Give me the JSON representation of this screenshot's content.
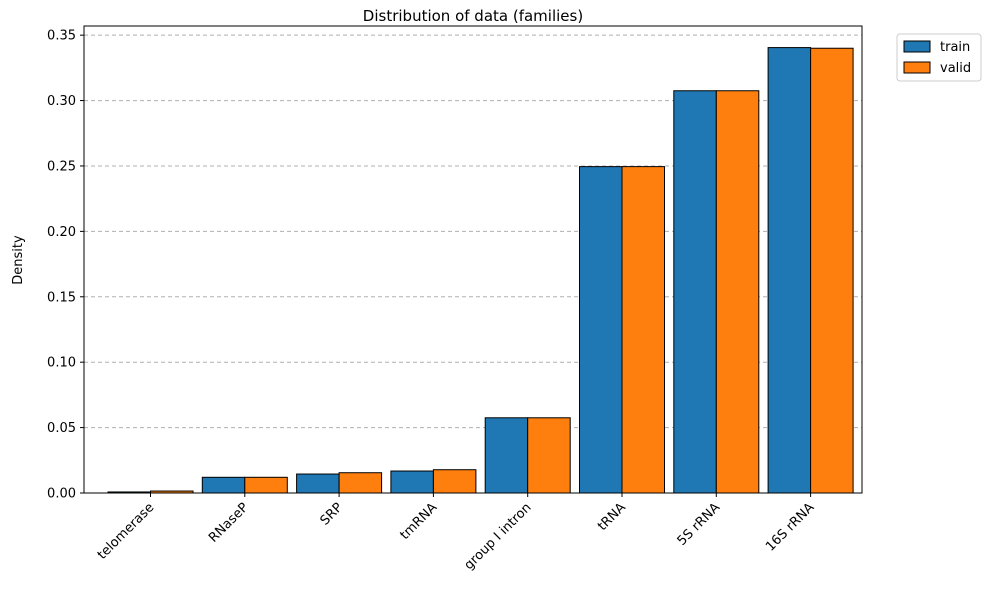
{
  "chart_data": {
    "type": "bar",
    "title": "Distribution of data (families)",
    "xlabel": "",
    "ylabel": "Density",
    "ylim": [
      0,
      0.357
    ],
    "yticks": [
      "0.00",
      "0.05",
      "0.10",
      "0.15",
      "0.20",
      "0.25",
      "0.30",
      "0.35"
    ],
    "grid": "horizontal dashed",
    "legend_position": "outside top-right",
    "categories": [
      "telomerase",
      "RNaseP",
      "SRP",
      "tmRNA",
      "group I intron",
      "tRNA",
      "5S rRNA",
      "16S rRNA"
    ],
    "series": [
      {
        "name": "train",
        "color": "#1f77b4",
        "values": [
          0.0008,
          0.012,
          0.0145,
          0.0168,
          0.0575,
          0.2495,
          0.3075,
          0.3405
        ]
      },
      {
        "name": "valid",
        "color": "#ff7f0e",
        "values": [
          0.0015,
          0.012,
          0.0155,
          0.0178,
          0.0575,
          0.2495,
          0.3075,
          0.34
        ]
      }
    ]
  }
}
